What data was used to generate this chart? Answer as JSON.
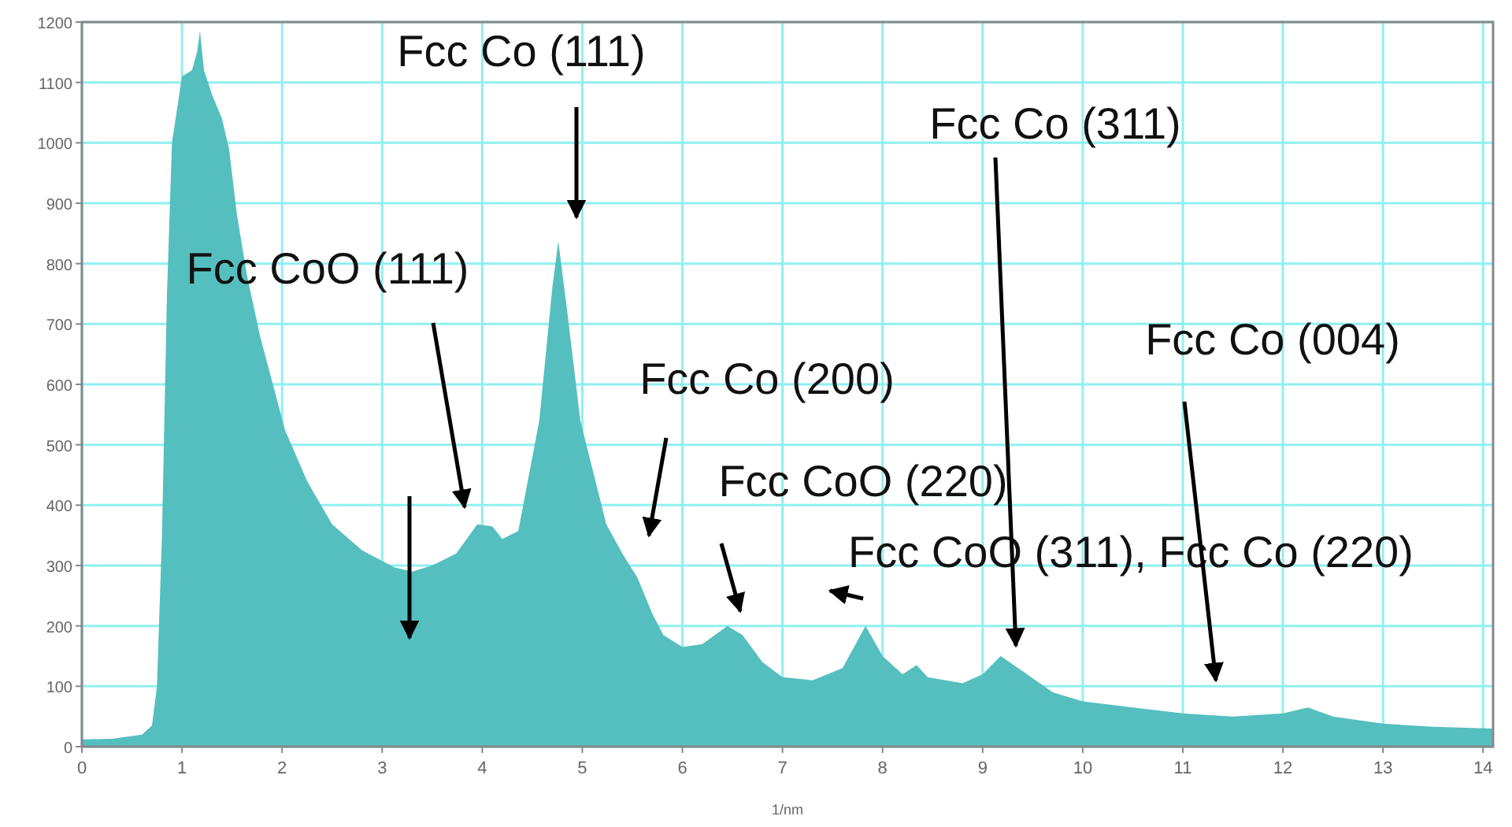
{
  "chart_data": {
    "type": "area",
    "xlabel": "1/nm",
    "xlim": [
      0,
      14.1
    ],
    "ylim": [
      0,
      1200
    ],
    "xticks": [
      0,
      1,
      2,
      3,
      4,
      5,
      6,
      7,
      8,
      9,
      10,
      11,
      12,
      13,
      14
    ],
    "yticks": [
      0,
      100,
      200,
      300,
      400,
      500,
      600,
      700,
      800,
      900,
      1000,
      1100,
      1200
    ],
    "grid": true,
    "series": [
      {
        "color": "#55bfbf",
        "x": [
          0,
          0.3,
          0.6,
          0.7,
          0.75,
          0.8,
          0.85,
          0.9,
          1.0,
          1.1,
          1.15,
          1.18,
          1.22,
          1.3,
          1.4,
          1.47,
          1.55,
          1.65,
          1.78,
          2.03,
          2.25,
          2.5,
          2.8,
          3.12,
          3.3,
          3.5,
          3.74,
          3.95,
          4.1,
          4.2,
          4.36,
          4.57,
          4.7,
          4.76,
          4.85,
          4.98,
          5.24,
          5.4,
          5.55,
          5.7,
          5.81,
          6.0,
          6.2,
          6.45,
          6.6,
          6.8,
          7.0,
          7.3,
          7.6,
          7.83,
          8.0,
          8.2,
          8.34,
          8.45,
          8.8,
          9.0,
          9.18,
          9.4,
          9.7,
          10,
          10.5,
          11,
          11.5,
          12.0,
          12.25,
          12.5,
          13,
          13.5,
          14.1
        ],
        "values": [
          12,
          13,
          20,
          35,
          100,
          350,
          750,
          1000,
          1110,
          1120,
          1150,
          1185,
          1120,
          1080,
          1040,
          990,
          880,
          780,
          680,
          524,
          440,
          368,
          325,
          297,
          290,
          300,
          320,
          368,
          365,
          344,
          357,
          540,
          760,
          837,
          720,
          540,
          368,
          320,
          280,
          220,
          185,
          165,
          170,
          200,
          185,
          140,
          115,
          110,
          130,
          200,
          150,
          120,
          135,
          115,
          105,
          120,
          150,
          125,
          90,
          75,
          65,
          55,
          50,
          55,
          65,
          50,
          38,
          33,
          30
        ]
      }
    ],
    "annotations": [
      "Fcc CoO (111)",
      "Fcc Co (111)",
      "Fcc Co (200)",
      "Fcc CoO (220)",
      "Fcc CoO (311), Fcc Co (220)",
      "Fcc Co (311)",
      "Fcc Co (004)"
    ]
  }
}
